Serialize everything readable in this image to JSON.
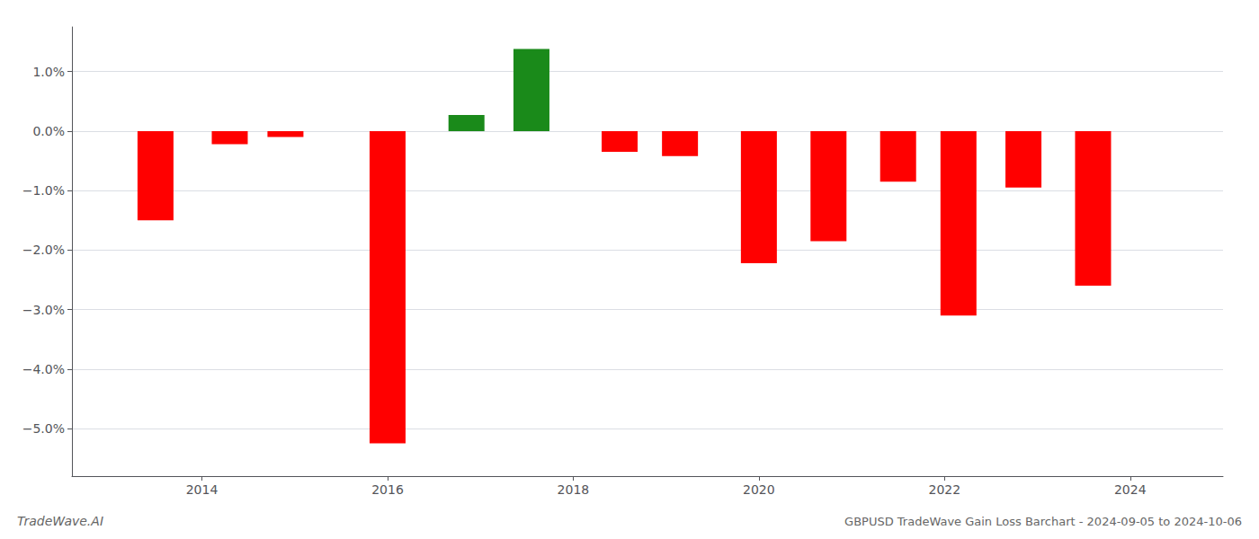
{
  "chart_data": {
    "type": "bar",
    "title": "GBPUSD TradeWave Gain Loss Barchart - 2024-09-05 to 2024-10-06",
    "annotations": [
      "TradeWave.AI"
    ],
    "x": [
      2013.5,
      2014.3,
      2014.9,
      2016.0,
      2016.85,
      2017.55,
      2018.5,
      2019.15,
      2020.0,
      2020.75,
      2021.5,
      2022.15,
      2022.85,
      2023.6
    ],
    "values": [
      -1.5,
      -0.22,
      -0.1,
      -5.25,
      0.27,
      1.38,
      -0.35,
      -0.42,
      -2.22,
      -1.85,
      -0.85,
      -3.1,
      -0.95,
      -2.6
    ],
    "colors": [
      "#ff0000",
      "#ff0000",
      "#ff0000",
      "#ff0000",
      "#1a8a1a",
      "#1a8a1a",
      "#ff0000",
      "#ff0000",
      "#ff0000",
      "#ff0000",
      "#ff0000",
      "#ff0000",
      "#ff0000",
      "#ff0000"
    ],
    "xlim": [
      2012.6,
      2025.0
    ],
    "xticks": [
      2014,
      2016,
      2018,
      2020,
      2022,
      2024
    ],
    "ylim": [
      -5.8,
      1.75
    ],
    "yticks": [
      {
        "value": -5.0,
        "label": "−5.0%"
      },
      {
        "value": -4.0,
        "label": "−4.0%"
      },
      {
        "value": -3.0,
        "label": "−3.0%"
      },
      {
        "value": -2.0,
        "label": "−2.0%"
      },
      {
        "value": -1.0,
        "label": "−1.0%"
      },
      {
        "value": 0.0,
        "label": "0.0%"
      },
      {
        "value": 1.0,
        "label": "1.0%"
      }
    ],
    "grid": true
  }
}
